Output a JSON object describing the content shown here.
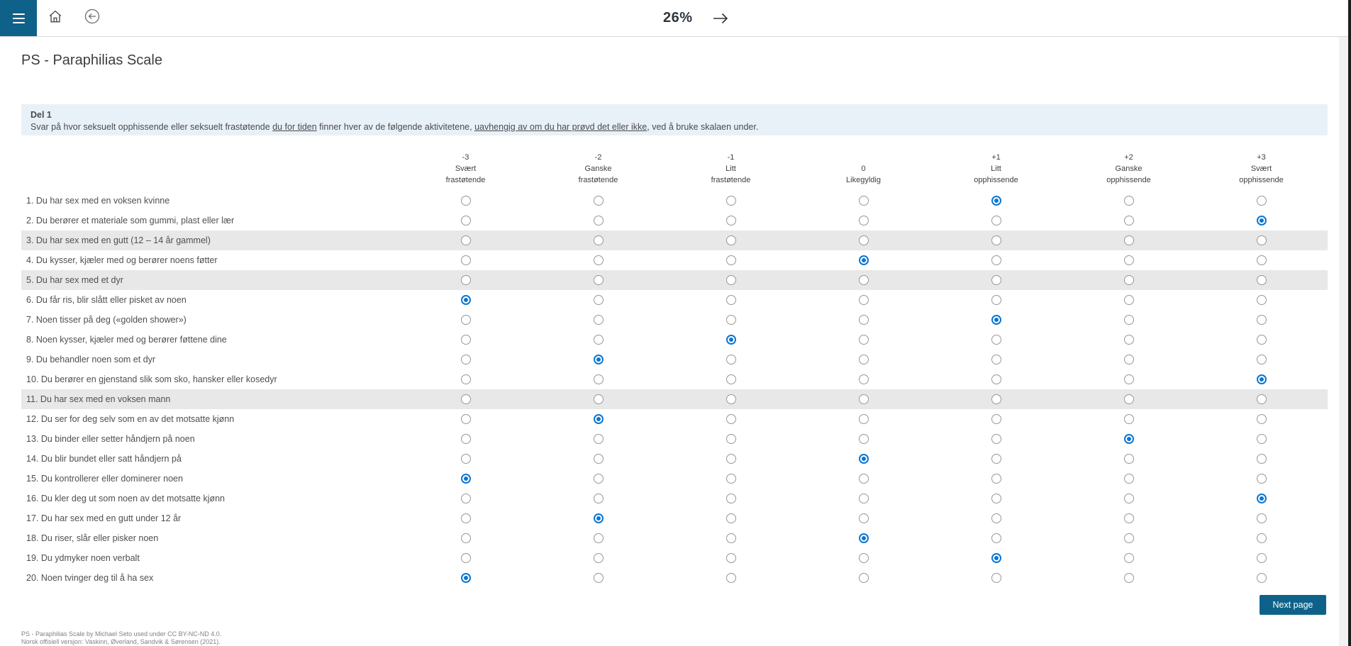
{
  "topbar": {
    "progress": "26%",
    "icons": {
      "menu": "hamburger-menu",
      "home": "home",
      "back": "back-circle",
      "next": "arrow-right"
    }
  },
  "page": {
    "title": "PS - Paraphilias Scale"
  },
  "instructions": {
    "heading": "Del 1",
    "part1": "Svar på hvor seksuelt opphissende eller seksuelt frastøtende ",
    "underline1": "du for tiden",
    "part2": " finner hver av de følgende aktivitetene, ",
    "underline2": "uavhengig av om du har prøvd det eller ikke",
    "part3": ", ved å bruke skalaen under."
  },
  "scale": {
    "options": [
      {
        "value": "-3",
        "lines": [
          "-3",
          "Svært",
          "frastøtende"
        ]
      },
      {
        "value": "-2",
        "lines": [
          "-2",
          "Ganske",
          "frastøtende"
        ]
      },
      {
        "value": "-1",
        "lines": [
          "-1",
          "Litt",
          "frastøtende"
        ]
      },
      {
        "value": "0",
        "lines": [
          "0",
          "Likegyldig"
        ]
      },
      {
        "value": "+1",
        "lines": [
          "+1",
          "Litt",
          "opphissende"
        ]
      },
      {
        "value": "+2",
        "lines": [
          "+2",
          "Ganske",
          "opphissende"
        ]
      },
      {
        "value": "+3",
        "lines": [
          "+3",
          "Svært",
          "opphissende"
        ]
      }
    ]
  },
  "questions": [
    {
      "num": 1,
      "text": "Du har sex med en voksen kvinne",
      "answer": "+1",
      "shaded": false
    },
    {
      "num": 2,
      "text": "Du berører et materiale som gummi, plast eller lær",
      "answer": "+3",
      "shaded": false
    },
    {
      "num": 3,
      "text": "Du har sex med en gutt (12 – 14 år gammel)",
      "answer": null,
      "shaded": true
    },
    {
      "num": 4,
      "text": "Du kysser, kjæler med og berører noens føtter",
      "answer": "0",
      "shaded": false
    },
    {
      "num": 5,
      "text": "Du har sex med et dyr",
      "answer": null,
      "shaded": true
    },
    {
      "num": 6,
      "text": "Du får ris, blir slått eller pisket av noen",
      "answer": "-3",
      "shaded": false
    },
    {
      "num": 7,
      "text": "Noen tisser på deg («golden shower»)",
      "answer": "+1",
      "shaded": false
    },
    {
      "num": 8,
      "text": "Noen kysser, kjæler med og berører føttene dine",
      "answer": "-1",
      "shaded": false
    },
    {
      "num": 9,
      "text": "Du behandler noen som et dyr",
      "answer": "-2",
      "shaded": false
    },
    {
      "num": 10,
      "text": "Du berører en gjenstand slik som sko, hansker eller kosedyr",
      "answer": "+3",
      "shaded": false
    },
    {
      "num": 11,
      "text": "Du har sex med en voksen mann",
      "answer": null,
      "shaded": true
    },
    {
      "num": 12,
      "text": "Du ser for deg selv som en av det motsatte kjønn",
      "answer": "-2",
      "shaded": false
    },
    {
      "num": 13,
      "text": "Du binder eller setter håndjern på noen",
      "answer": "+2",
      "shaded": false
    },
    {
      "num": 14,
      "text": "Du blir bundet eller satt håndjern på",
      "answer": "0",
      "shaded": false
    },
    {
      "num": 15,
      "text": "Du kontrollerer eller dominerer noen",
      "answer": "-3",
      "shaded": false
    },
    {
      "num": 16,
      "text": "Du kler deg ut som noen av det motsatte kjønn",
      "answer": "+3",
      "shaded": false
    },
    {
      "num": 17,
      "text": "Du har sex med en gutt under 12 år",
      "answer": "-2",
      "shaded": false
    },
    {
      "num": 18,
      "text": "Du riser, slår eller pisker noen",
      "answer": "0",
      "shaded": false
    },
    {
      "num": 19,
      "text": "Du ydmyker noen verbalt",
      "answer": "+1",
      "shaded": false
    },
    {
      "num": 20,
      "text": "Noen tvinger deg til å ha sex",
      "answer": "-3",
      "shaded": false
    }
  ],
  "buttons": {
    "next_page": "Next page"
  },
  "footer": {
    "line1": "PS - Paraphilias Scale by Michael Seto used under CC BY-NC-ND 4.0.",
    "line2": "Norsk offisiell versjon: Vaskinn, Øverland, Sandvik & Sørensen (2021)."
  },
  "colors": {
    "accent": "#0e6289",
    "selected_radio": "#0b76d1",
    "infobox_bg": "#e9f1f8",
    "shaded_row": "#e8e8e8"
  }
}
